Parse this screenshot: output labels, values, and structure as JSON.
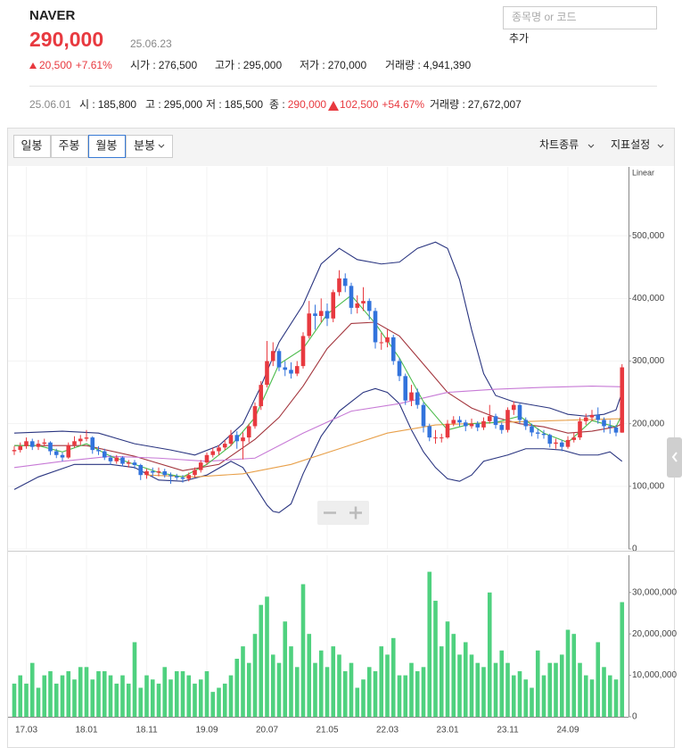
{
  "header": {
    "name": "NAVER",
    "price": "290,000",
    "date": "25.06.23",
    "change": "20,500",
    "change_pct": "+7.61%",
    "stats": [
      {
        "label": "시가 :",
        "value": "276,500"
      },
      {
        "label": "고가 :",
        "value": "295,000"
      },
      {
        "label": "저가 :",
        "value": "270,000"
      },
      {
        "label": "거래량 :",
        "value": "4,941,390"
      }
    ],
    "search_placeholder": "종목명 or 코드",
    "add_button": "추가"
  },
  "summary": {
    "date": "25.06.01",
    "stats": [
      {
        "label": "시 :",
        "value": "185,800"
      },
      {
        "label": "고 :",
        "value": "295,000"
      },
      {
        "label": "저 :",
        "value": "185,500"
      },
      {
        "label": "종 :",
        "value": "290,000"
      }
    ],
    "change": "102,500",
    "change_pct": "+54.67%",
    "volume_label": "거래량 :",
    "volume": "27,672,007"
  },
  "toolbar": {
    "periods": [
      "일봉",
      "주봉",
      "월봉",
      "분봉"
    ],
    "selected_index": 2,
    "menus": [
      "차트종류",
      "지표설정"
    ]
  },
  "chart_data": {
    "type": "candlestick",
    "scale_label": "Linear",
    "up_color": "#e8393f",
    "down_color": "#3273dc",
    "categories": [
      null,
      null,
      "17.03",
      null,
      null,
      null,
      null,
      null,
      null,
      null,
      null,
      null,
      "18.01",
      null,
      null,
      null,
      null,
      null,
      null,
      null,
      null,
      null,
      "18.11",
      null,
      null,
      null,
      null,
      null,
      null,
      null,
      null,
      null,
      "19.09",
      null,
      null,
      null,
      null,
      null,
      null,
      null,
      null,
      null,
      "20.07",
      null,
      null,
      null,
      null,
      null,
      null,
      null,
      null,
      null,
      "21.05",
      null,
      null,
      null,
      null,
      null,
      null,
      null,
      null,
      null,
      "22.03",
      null,
      null,
      null,
      null,
      null,
      null,
      null,
      null,
      null,
      "23.01",
      null,
      null,
      null,
      null,
      null,
      null,
      null,
      null,
      null,
      "23.11",
      null,
      null,
      null,
      null,
      null,
      null,
      null,
      null,
      null,
      "24.09",
      null,
      null,
      null,
      null,
      null,
      null,
      null,
      null,
      null
    ],
    "open": [
      156000,
      158000,
      164000,
      172000,
      163000,
      168000,
      170000,
      156000,
      150000,
      146000,
      166000,
      172000,
      176000,
      178000,
      158000,
      156000,
      146000,
      140000,
      146000,
      136000,
      138000,
      134000,
      118000,
      124000,
      122000,
      124000,
      118000,
      116000,
      114000,
      112000,
      118000,
      126000,
      138000,
      150000,
      156000,
      162000,
      168000,
      182000,
      172000,
      178000,
      196000,
      228000,
      262000,
      300000,
      316000,
      290000,
      286000,
      280000,
      292000,
      340000,
      376000,
      372000,
      380000,
      368000,
      410000,
      432000,
      420000,
      385000,
      392000,
      396000,
      380000,
      330000,
      330000,
      338000,
      300000,
      276000,
      237000,
      250000,
      230000,
      196000,
      178000,
      178000,
      178000,
      200000,
      206000,
      202000,
      196000,
      200000,
      194000,
      204000,
      212000,
      198000,
      190000,
      222000,
      230000,
      206000,
      196000,
      186000,
      184000,
      182000,
      168000,
      170000,
      163000,
      174000,
      178000,
      204000,
      210000,
      214000,
      206000,
      196000,
      194000,
      185800
    ],
    "high": [
      164000,
      170000,
      178000,
      176000,
      174000,
      176000,
      172000,
      160000,
      154000,
      170000,
      180000,
      182000,
      190000,
      180000,
      164000,
      160000,
      150000,
      150000,
      148000,
      142000,
      142000,
      136000,
      128000,
      130000,
      130000,
      128000,
      122000,
      120000,
      118000,
      122000,
      130000,
      142000,
      154000,
      162000,
      166000,
      174000,
      190000,
      188000,
      186000,
      200000,
      234000,
      268000,
      332000,
      330000,
      320000,
      300000,
      298000,
      300000,
      346000,
      396000,
      390000,
      400000,
      392000,
      414000,
      445000,
      440000,
      425000,
      405000,
      418000,
      400000,
      385000,
      345000,
      350000,
      342000,
      305000,
      280000,
      262000,
      256000,
      234000,
      200000,
      190000,
      184000,
      206000,
      212000,
      212000,
      206000,
      208000,
      204000,
      210000,
      230000,
      216000,
      202000,
      226000,
      236000,
      232000,
      210000,
      200000,
      192000,
      190000,
      184000,
      176000,
      174000,
      180000,
      186000,
      210000,
      216000,
      222000,
      226000,
      210000,
      206000,
      198000,
      295000
    ],
    "low": [
      150000,
      154000,
      160000,
      158000,
      158000,
      164000,
      150000,
      145000,
      140000,
      144000,
      162000,
      166000,
      172000,
      152000,
      150000,
      142000,
      134000,
      136000,
      132000,
      130000,
      128000,
      110000,
      112000,
      116000,
      116000,
      114000,
      104000,
      110000,
      106000,
      108000,
      114000,
      122000,
      134000,
      146000,
      150000,
      158000,
      164000,
      160000,
      143000,
      170000,
      192000,
      222000,
      258000,
      292000,
      284000,
      276000,
      272000,
      276000,
      288000,
      336000,
      350000,
      362000,
      356000,
      362000,
      404000,
      410000,
      375000,
      376000,
      380000,
      366000,
      320000,
      318000,
      322000,
      294000,
      268000,
      230000,
      228000,
      224000,
      186000,
      172000,
      168000,
      170000,
      176000,
      196000,
      196000,
      188000,
      192000,
      188000,
      190000,
      200000,
      192000,
      184000,
      186000,
      214000,
      200000,
      190000,
      180000,
      176000,
      176000,
      162000,
      160000,
      156000,
      160000,
      170000,
      174000,
      198000,
      204000,
      200000,
      186000,
      184000,
      180000,
      185500
    ],
    "close": [
      158000,
      164000,
      172000,
      163000,
      168000,
      170000,
      156000,
      150000,
      146000,
      166000,
      172000,
      176000,
      178000,
      158000,
      156000,
      146000,
      140000,
      146000,
      136000,
      138000,
      134000,
      118000,
      124000,
      122000,
      124000,
      118000,
      116000,
      114000,
      112000,
      118000,
      126000,
      138000,
      150000,
      156000,
      162000,
      168000,
      182000,
      172000,
      178000,
      196000,
      228000,
      262000,
      300000,
      316000,
      290000,
      286000,
      280000,
      292000,
      340000,
      376000,
      372000,
      380000,
      368000,
      410000,
      432000,
      420000,
      385000,
      392000,
      396000,
      380000,
      330000,
      330000,
      338000,
      300000,
      276000,
      237000,
      250000,
      230000,
      196000,
      178000,
      178000,
      178000,
      200000,
      206000,
      202000,
      196000,
      200000,
      194000,
      204000,
      212000,
      198000,
      190000,
      222000,
      230000,
      206000,
      196000,
      186000,
      184000,
      182000,
      168000,
      170000,
      163000,
      174000,
      178000,
      204000,
      210000,
      214000,
      206000,
      196000,
      194000,
      185800,
      290000
    ],
    "ylim": [
      0,
      610000
    ],
    "yticks": [
      0,
      {
        "value": 100000,
        "label": "100,000"
      },
      {
        "value": 200000,
        "label": "200,000"
      },
      {
        "value": 300000,
        "label": "300,000"
      },
      {
        "value": 400000,
        "label": "400,000"
      },
      {
        "value": 500000,
        "label": "500,000"
      }
    ],
    "lines": [
      {
        "color": "#2a3580",
        "x": [
          0,
          8,
          14,
          20,
          26,
          30,
          34,
          38,
          41,
          44,
          48,
          51,
          54,
          57,
          61,
          64,
          67,
          70,
          72,
          74,
          76,
          78,
          80,
          83,
          86,
          89,
          92,
          95,
          98,
          100,
          101
        ],
        "values": [
          185000,
          188000,
          185000,
          168000,
          158000,
          150000,
          165000,
          200000,
          260000,
          330000,
          390000,
          455000,
          480000,
          462000,
          455000,
          458000,
          480000,
          490000,
          480000,
          430000,
          350000,
          280000,
          245000,
          235000,
          230000,
          225000,
          215000,
          212000,
          215000,
          222000,
          250000
        ]
      },
      {
        "color": "#2a3580",
        "x": [
          0,
          4,
          10,
          16,
          20,
          24,
          28,
          32,
          36,
          38,
          40,
          42,
          43,
          44,
          46,
          48,
          51,
          54,
          56,
          58,
          60,
          62,
          64,
          66,
          68,
          70,
          72,
          74,
          76,
          78,
          82,
          85,
          88,
          91,
          94,
          97,
          99,
          101
        ],
        "values": [
          95000,
          115000,
          135000,
          135000,
          130000,
          110000,
          108000,
          118000,
          140000,
          130000,
          100000,
          70000,
          60000,
          58000,
          72000,
          120000,
          180000,
          220000,
          235000,
          250000,
          256000,
          250000,
          232000,
          190000,
          155000,
          130000,
          112000,
          108000,
          118000,
          140000,
          150000,
          160000,
          160000,
          158000,
          150000,
          150000,
          155000,
          140000
        ]
      },
      {
        "color": "#a3353d",
        "x": [
          0,
          12,
          20,
          28,
          34,
          40,
          44,
          48,
          52,
          56,
          60,
          64,
          68,
          72,
          76,
          80,
          84,
          88,
          92,
          96,
          100,
          101
        ],
        "values": [
          165000,
          165000,
          148000,
          125000,
          135000,
          175000,
          210000,
          260000,
          320000,
          360000,
          362000,
          340000,
          295000,
          250000,
          225000,
          210000,
          200000,
          195000,
          185000,
          188000,
          195000,
          200000
        ]
      },
      {
        "color": "#c77ad6",
        "x": [
          0,
          8,
          16,
          24,
          32,
          40,
          48,
          56,
          64,
          72,
          80,
          88,
          96,
          101
        ],
        "values": [
          130000,
          140000,
          148000,
          145000,
          140000,
          145000,
          185000,
          220000,
          232000,
          250000,
          255000,
          258000,
          260000,
          259000
        ]
      },
      {
        "color": "#e8a04a",
        "x": [
          22,
          30,
          38,
          46,
          54,
          62,
          70,
          80,
          90,
          101
        ],
        "values": [
          118000,
          115000,
          120000,
          135000,
          160000,
          185000,
          198000,
          202000,
          205000,
          208000
        ]
      },
      {
        "color": "#4cbb4c",
        "x": [
          0,
          4,
          8,
          12,
          16,
          20,
          24,
          28,
          32,
          36,
          40,
          44,
          48,
          52,
          56,
          60,
          64,
          68,
          72,
          76,
          80,
          84,
          88,
          92,
          96,
          100,
          101
        ],
        "values": [
          165000,
          165000,
          155000,
          168000,
          148000,
          135000,
          122000,
          115000,
          135000,
          165000,
          210000,
          295000,
          320000,
          375000,
          405000,
          360000,
          305000,
          235000,
          190000,
          200000,
          202000,
          212000,
          185000,
          170000,
          205000,
          195000,
          215000
        ]
      }
    ],
    "volume": {
      "color": "#4fd17f",
      "values": [
        8000000,
        10000000,
        8000000,
        13000000,
        7000000,
        10000000,
        11000000,
        8000000,
        10000000,
        11000000,
        9000000,
        12000000,
        12000000,
        9000000,
        11000000,
        11000000,
        10000000,
        8000000,
        10000000,
        8000000,
        18000000,
        7000000,
        10000000,
        9000000,
        8000000,
        12000000,
        9000000,
        11000000,
        11000000,
        10000000,
        8000000,
        9000000,
        11000000,
        6000000,
        7000000,
        8000000,
        10000000,
        14000000,
        17000000,
        13000000,
        20000000,
        27000000,
        29000000,
        15000000,
        13000000,
        23000000,
        17000000,
        12000000,
        32000000,
        20000000,
        13000000,
        16000000,
        12000000,
        17000000,
        15000000,
        11000000,
        13000000,
        7000000,
        9000000,
        12000000,
        11000000,
        17000000,
        15000000,
        19000000,
        10000000,
        10000000,
        13000000,
        11000000,
        12000000,
        35000000,
        28000000,
        17000000,
        23000000,
        20000000,
        15000000,
        18000000,
        15000000,
        13000000,
        12000000,
        30000000,
        13000000,
        16000000,
        13000000,
        10000000,
        11000000,
        9000000,
        7000000,
        16000000,
        10000000,
        13000000,
        13000000,
        15000000,
        21000000,
        20000000,
        13000000,
        10000000,
        9000000,
        18000000,
        12000000,
        10000000,
        9000000,
        27672007
      ],
      "ylim": [
        0,
        39000000
      ],
      "yticks": [
        0,
        {
          "value": 10000000,
          "label": "10,000,000"
        },
        {
          "value": 20000000,
          "label": "20,000,000"
        },
        {
          "value": 30000000,
          "label": "30,000,000"
        }
      ]
    }
  }
}
